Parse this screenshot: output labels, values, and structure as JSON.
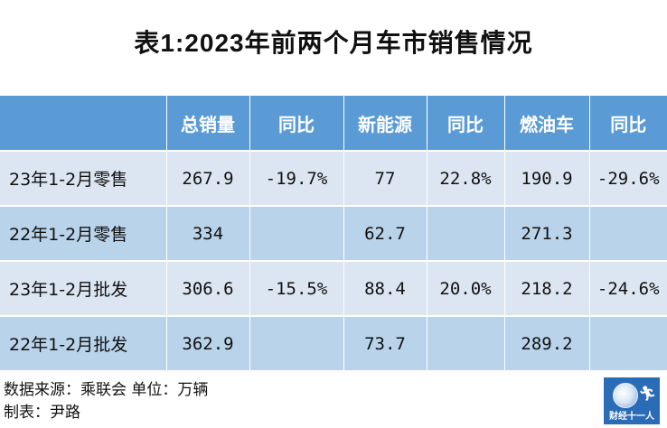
{
  "title": "表1:2023年前两个月车市销售情况",
  "table": {
    "headers": [
      "",
      "总销量",
      "同比",
      "新能源",
      "同比",
      "燃油车",
      "同比"
    ],
    "rows": [
      [
        "23年1-2月零售",
        "267.9",
        "-19.7%",
        "77",
        "22.8%",
        "190.9",
        "-29.6%"
      ],
      [
        "22年1-2月零售",
        "334",
        "",
        "62.7",
        "",
        "271.3",
        ""
      ],
      [
        "23年1-2月批发",
        "306.6",
        "-15.5%",
        "88.4",
        "20.0%",
        "218.2",
        "-24.6%"
      ],
      [
        "22年1-2月批发",
        "362.9",
        "",
        "73.7",
        "",
        "289.2",
        ""
      ]
    ]
  },
  "footer": {
    "line1": "数据来源：乘联会 单位：万辆",
    "line2": "制表：尹路"
  },
  "logo": {
    "text": "财经十一人",
    "icon": "globe-runner-icon"
  },
  "colors": {
    "header_bg": "#5b9bd5",
    "row_light": "#dce6f2",
    "row_dark": "#b9d3ea",
    "logo_bg": "#2b6cb8"
  }
}
